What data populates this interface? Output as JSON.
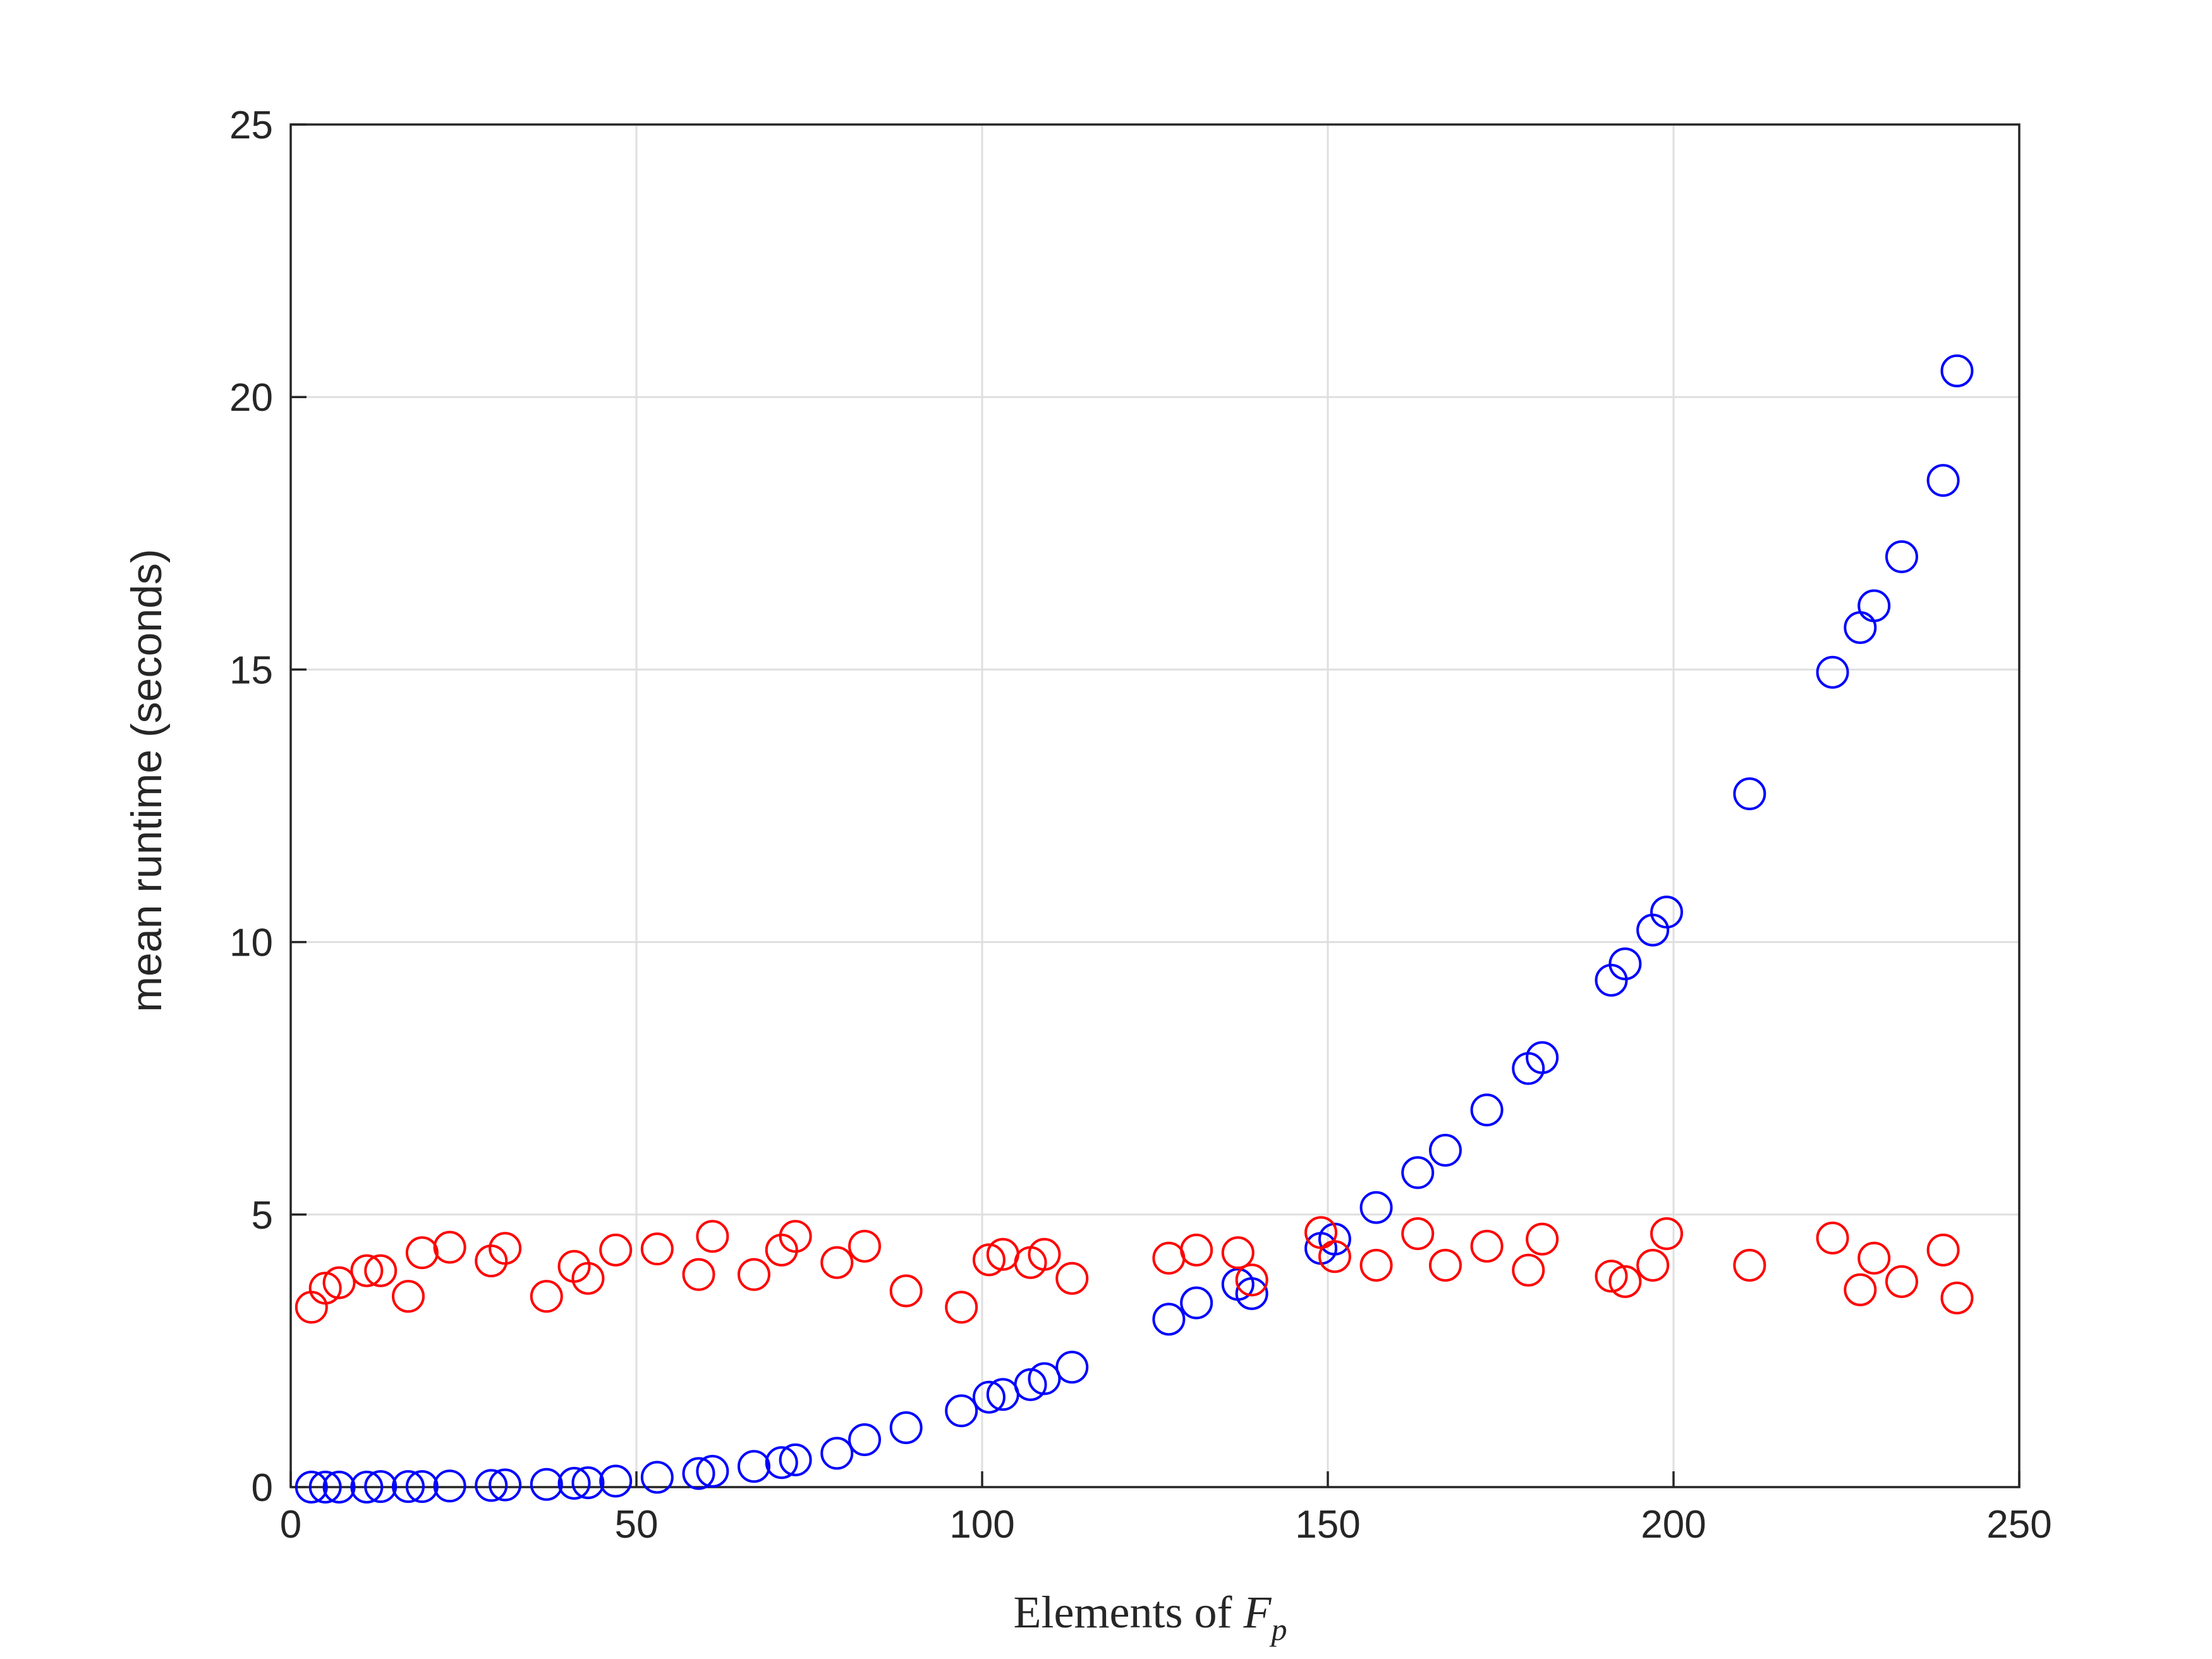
{
  "chart_data": {
    "type": "scatter",
    "xlabel": "Elements of F_p",
    "xlabel_parts": {
      "text": "Elements of ",
      "var": "F",
      "sub": "p"
    },
    "ylabel": "mean runtime (seconds)",
    "xlim": [
      0,
      250
    ],
    "ylim": [
      0,
      25
    ],
    "xticks": [
      0,
      50,
      100,
      150,
      200,
      250
    ],
    "yticks": [
      0,
      5,
      10,
      15,
      20,
      25
    ],
    "xtick_labels": [
      "0",
      "50",
      "100",
      "150",
      "200",
      "250"
    ],
    "ytick_labels": [
      "0",
      "5",
      "10",
      "15",
      "20",
      "25"
    ],
    "grid": true,
    "marker": "open-circle",
    "series": [
      {
        "color": "#0000ff",
        "x": [
          3,
          5,
          7,
          11,
          13,
          17,
          19,
          23,
          29,
          31,
          37,
          41,
          43,
          47,
          53,
          59,
          61,
          67,
          71,
          73,
          79,
          83,
          89,
          97,
          101,
          103,
          107,
          109,
          113,
          127,
          131,
          137,
          139,
          149,
          151,
          157,
          163,
          167,
          173,
          179,
          181,
          191,
          193,
          197,
          199,
          211,
          223,
          227,
          229,
          233,
          239,
          241
        ],
        "y": [
          0.0,
          0.0,
          0.0,
          0.0,
          0.01,
          0.01,
          0.01,
          0.02,
          0.03,
          0.04,
          0.05,
          0.07,
          0.08,
          0.11,
          0.18,
          0.25,
          0.29,
          0.38,
          0.45,
          0.5,
          0.62,
          0.87,
          1.09,
          1.4,
          1.65,
          1.7,
          1.88,
          1.99,
          2.2,
          3.08,
          3.38,
          3.72,
          3.55,
          4.38,
          4.55,
          5.13,
          5.77,
          6.18,
          6.92,
          7.68,
          7.88,
          9.3,
          9.6,
          10.22,
          10.55,
          12.72,
          14.95,
          15.77,
          16.17,
          17.07,
          18.47,
          20.48
        ]
      },
      {
        "color": "#ff0000",
        "x": [
          3,
          5,
          7,
          11,
          13,
          17,
          19,
          23,
          29,
          31,
          37,
          41,
          43,
          47,
          53,
          59,
          61,
          67,
          71,
          73,
          79,
          83,
          89,
          97,
          101,
          103,
          107,
          109,
          113,
          127,
          131,
          137,
          139,
          149,
          151,
          157,
          163,
          167,
          173,
          179,
          181,
          191,
          193,
          197,
          199,
          211,
          223,
          227,
          229,
          233,
          239,
          241
        ],
        "y": [
          3.3,
          3.65,
          3.75,
          3.97,
          3.97,
          3.5,
          4.3,
          4.4,
          4.15,
          4.38,
          3.5,
          4.05,
          3.83,
          4.35,
          4.37,
          3.9,
          4.6,
          3.9,
          4.35,
          4.6,
          4.12,
          4.42,
          3.6,
          3.3,
          4.17,
          4.27,
          4.12,
          4.27,
          3.83,
          4.2,
          4.35,
          4.3,
          3.8,
          4.67,
          4.23,
          4.07,
          4.65,
          4.07,
          4.42,
          3.98,
          4.55,
          3.87,
          3.77,
          4.07,
          4.65,
          4.07,
          4.57,
          3.62,
          4.2,
          3.77,
          4.35,
          3.47
        ]
      }
    ]
  }
}
